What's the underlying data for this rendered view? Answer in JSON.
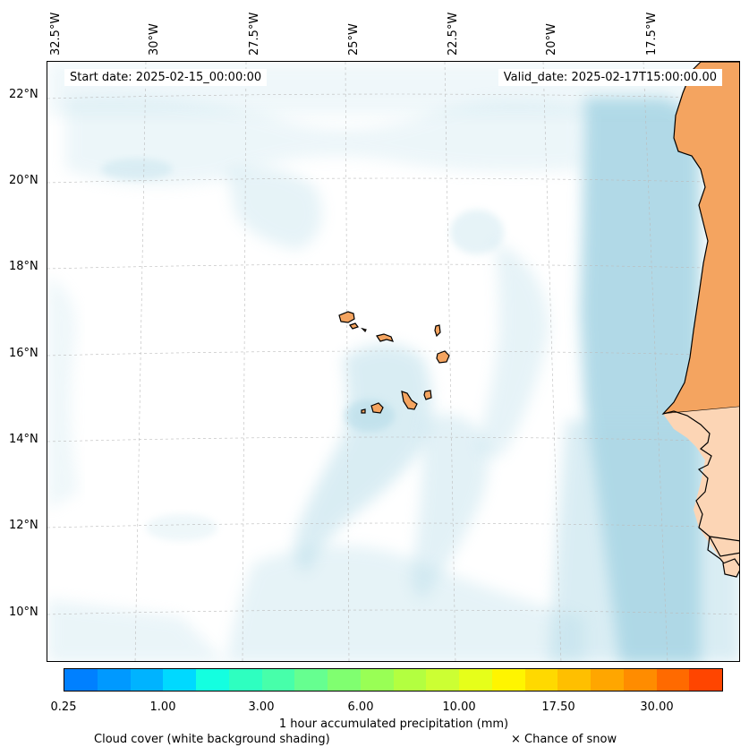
{
  "map": {
    "start_date": "Start date: 2025-02-15_00:00:00",
    "valid_date": "Valid_date: 2025-02-17T15:00:00.00",
    "longitude_labels": [
      "32.5°W",
      "30°W",
      "27.5°W",
      "25°W",
      "22.5°W",
      "20°W",
      "17.5°W"
    ],
    "latitude_labels": [
      "22°N",
      "20°N",
      "18°N",
      "16°N",
      "14°N",
      "12°N",
      "10°N"
    ]
  },
  "colorbar": {
    "colors": [
      "#0080ff",
      "#0099ff",
      "#00b3ff",
      "#00d9ff",
      "#14ffe0",
      "#2effc0",
      "#47ffaa",
      "#66ff90",
      "#80ff70",
      "#99ff55",
      "#b3ff40",
      "#ccff33",
      "#e6ff1a",
      "#fff500",
      "#ffd900",
      "#ffbf00",
      "#ffa600",
      "#ff8c00",
      "#ff6a00",
      "#ff4500"
    ],
    "tick_labels": [
      "0.25",
      "1.00",
      "3.00",
      "6.00",
      "10.00",
      "17.50",
      "30.00"
    ],
    "label": "1 hour accumulated precipitation (mm)"
  },
  "legend": {
    "cloud_cover": "Cloud cover (white background shading)",
    "snow": "× Chance of snow"
  },
  "colors": {
    "land": "#f4a460",
    "land_light": "#fcd5b5",
    "cloud": "#add8e6"
  }
}
